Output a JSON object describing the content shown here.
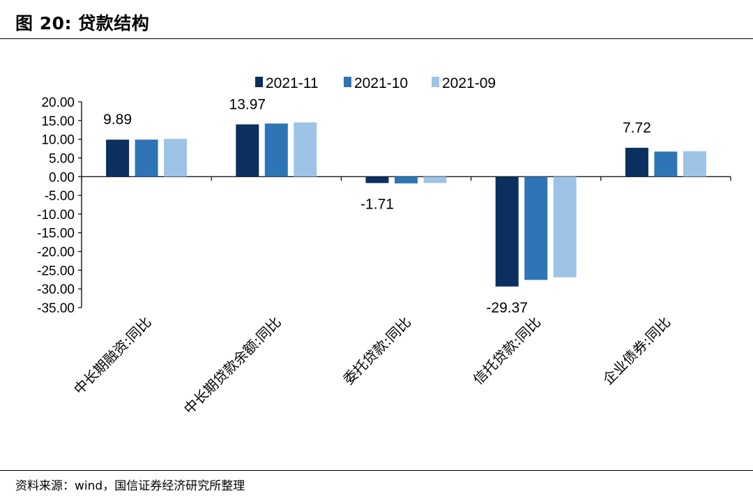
{
  "header": {
    "title": "图 20:  贷款结构"
  },
  "footer": {
    "source": "资料来源：wind，国信证券经济研究所整理"
  },
  "colors": {
    "s1": "#0b2f5e",
    "s2": "#2e75b6",
    "s3": "#9dc3e6"
  },
  "chart_data": {
    "type": "bar",
    "title": "",
    "xlabel": "",
    "ylabel": "",
    "ylim": [
      -35,
      20
    ],
    "yticks": [
      "20.00",
      "15.00",
      "10.00",
      "5.00",
      "0.00",
      "-5.00",
      "-10.00",
      "-15.00",
      "-20.00",
      "-25.00",
      "-30.00",
      "-35.00"
    ],
    "legend_position": "top-center",
    "grid": false,
    "categories": [
      "中长期融资:同比",
      "中长期贷款余额:同比",
      "委托贷款:同比",
      "信托贷款:同比",
      "企业债券:同比"
    ],
    "series": [
      {
        "name": "2021-11",
        "values": [
          9.89,
          13.97,
          -1.71,
          -29.37,
          7.72
        ]
      },
      {
        "name": "2021-10",
        "values": [
          9.9,
          14.2,
          -1.8,
          -27.6,
          6.7
        ]
      },
      {
        "name": "2021-09",
        "values": [
          10.1,
          14.5,
          -1.7,
          -26.9,
          6.8
        ]
      }
    ],
    "data_labels": [
      "9.89",
      "13.97",
      "-1.71",
      "-29.37",
      "7.72"
    ]
  }
}
